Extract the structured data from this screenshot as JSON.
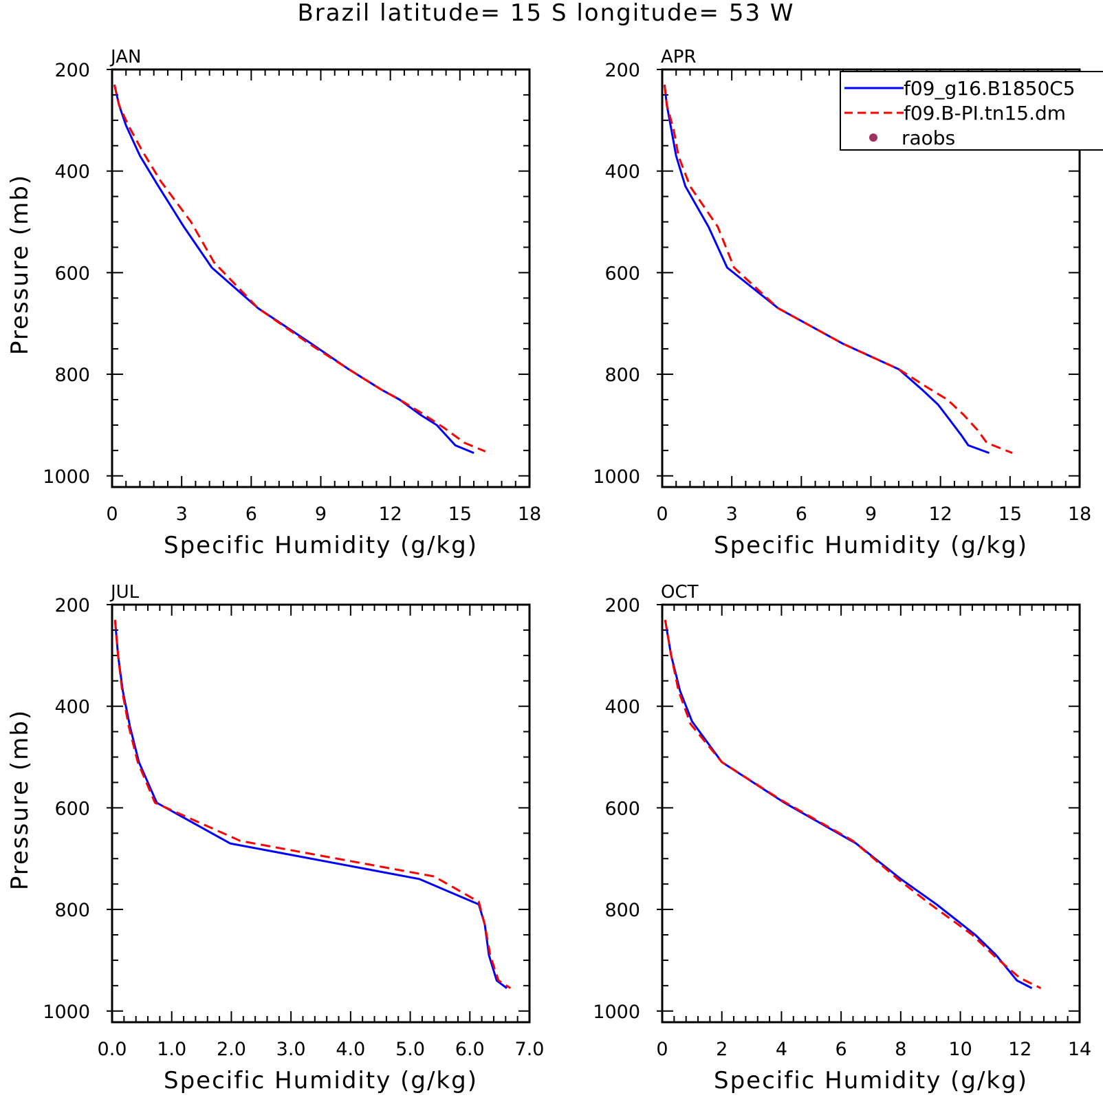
{
  "figure": {
    "title": "Brazil  latitude= 15 S longitude= 53 W"
  },
  "colors": {
    "f09_g16": "#0000ff",
    "f09_B_PI": "#ff0000",
    "raobs": "#a03060"
  },
  "legend": {
    "placement": "top-right of APR panel",
    "entries": [
      {
        "label": "f09_g16.B1850C5",
        "color": "#0000ff",
        "style": "solid"
      },
      {
        "label": "f09.B-PI.tn15.dm",
        "color": "#ff0000",
        "style": "dashed"
      },
      {
        "label": "raobs",
        "color": "#a03060",
        "style": "marker"
      }
    ]
  },
  "chart_data": [
    {
      "type": "line",
      "panel": "JAN",
      "title": "JAN",
      "xlabel": "Specific Humidity (g/kg)",
      "ylabel": "Pressure (mb)",
      "xlim": [
        0,
        18
      ],
      "ylim": [
        1000,
        200
      ],
      "y_inverted": true,
      "xticks": [
        "0",
        "3",
        "6",
        "9",
        "12",
        "15",
        "18"
      ],
      "yticks": [
        "200",
        "400",
        "600",
        "800",
        "1000"
      ],
      "series": [
        {
          "name": "f09_g16.B1850C5",
          "points": [
            [
              0.1,
              230
            ],
            [
              0.3,
              270
            ],
            [
              0.6,
              310
            ],
            [
              1.2,
              370
            ],
            [
              2.0,
              430
            ],
            [
              3.1,
              510
            ],
            [
              4.3,
              590
            ],
            [
              6.3,
              670
            ],
            [
              8.6,
              740
            ],
            [
              10.2,
              790
            ],
            [
              11.6,
              830
            ],
            [
              12.4,
              850
            ],
            [
              13.3,
              880
            ],
            [
              14.0,
              900
            ],
            [
              14.8,
              940
            ],
            [
              15.6,
              955
            ]
          ]
        },
        {
          "name": "f09.B-PI.tn15.dm",
          "points": [
            [
              0.1,
              230
            ],
            [
              0.3,
              270
            ],
            [
              0.7,
              310
            ],
            [
              1.3,
              360
            ],
            [
              2.1,
              420
            ],
            [
              3.4,
              500
            ],
            [
              4.4,
              580
            ],
            [
              6.3,
              670
            ],
            [
              8.5,
              740
            ],
            [
              10.2,
              790
            ],
            [
              11.6,
              830
            ],
            [
              12.4,
              850
            ],
            [
              13.3,
              875
            ],
            [
              14.3,
              905
            ],
            [
              15.2,
              935
            ],
            [
              16.1,
              952
            ]
          ]
        }
      ]
    },
    {
      "type": "line",
      "panel": "APR",
      "title": "APR",
      "xlabel": "Specific Humidity (g/kg)",
      "ylabel": "",
      "xlim": [
        0,
        18
      ],
      "ylim": [
        1000,
        200
      ],
      "y_inverted": true,
      "xticks": [
        "0",
        "3",
        "6",
        "9",
        "12",
        "15",
        "18"
      ],
      "yticks": [
        "200",
        "400",
        "600",
        "800",
        "1000"
      ],
      "series": [
        {
          "name": "f09_g16.B1850C5",
          "points": [
            [
              0.1,
              230
            ],
            [
              0.2,
              270
            ],
            [
              0.4,
              320
            ],
            [
              0.6,
              370
            ],
            [
              1.0,
              430
            ],
            [
              2.0,
              510
            ],
            [
              2.8,
              590
            ],
            [
              5.0,
              670
            ],
            [
              7.8,
              740
            ],
            [
              10.2,
              790
            ],
            [
              11.2,
              830
            ],
            [
              11.9,
              860
            ],
            [
              12.4,
              890
            ],
            [
              12.9,
              920
            ],
            [
              13.2,
              940
            ],
            [
              14.1,
              955
            ]
          ]
        },
        {
          "name": "f09.B-PI.tn15.dm",
          "points": [
            [
              0.1,
              230
            ],
            [
              0.2,
              270
            ],
            [
              0.5,
              320
            ],
            [
              0.7,
              370
            ],
            [
              1.2,
              430
            ],
            [
              2.4,
              510
            ],
            [
              3.1,
              590
            ],
            [
              5.0,
              670
            ],
            [
              7.8,
              740
            ],
            [
              10.2,
              790
            ],
            [
              11.4,
              825
            ],
            [
              12.3,
              850
            ],
            [
              13.0,
              880
            ],
            [
              13.6,
              910
            ],
            [
              14.0,
              935
            ],
            [
              15.1,
              955
            ]
          ]
        }
      ]
    },
    {
      "type": "line",
      "panel": "JUL",
      "title": "JUL",
      "xlabel": "Specific Humidity (g/kg)",
      "ylabel": "Pressure (mb)",
      "xlim": [
        0,
        7
      ],
      "ylim": [
        1000,
        200
      ],
      "y_inverted": true,
      "xticks": [
        "0.0",
        "1.0",
        "2.0",
        "3.0",
        "4.0",
        "5.0",
        "6.0",
        "7.0"
      ],
      "yticks": [
        "200",
        "400",
        "600",
        "800",
        "1000"
      ],
      "series": [
        {
          "name": "f09_g16.B1850C5",
          "points": [
            [
              0.05,
              230
            ],
            [
              0.1,
              300
            ],
            [
              0.18,
              370
            ],
            [
              0.3,
              440
            ],
            [
              0.45,
              510
            ],
            [
              0.75,
              590
            ],
            [
              1.98,
              670
            ],
            [
              5.15,
              740
            ],
            [
              6.15,
              790
            ],
            [
              6.25,
              830
            ],
            [
              6.32,
              890
            ],
            [
              6.45,
              940
            ],
            [
              6.62,
              955
            ]
          ]
        },
        {
          "name": "f09.B-PI.tn15.dm",
          "points": [
            [
              0.05,
              230
            ],
            [
              0.1,
              300
            ],
            [
              0.17,
              370
            ],
            [
              0.28,
              440
            ],
            [
              0.43,
              510
            ],
            [
              0.72,
              590
            ],
            [
              2.15,
              665
            ],
            [
              5.4,
              735
            ],
            [
              6.15,
              785
            ],
            [
              6.25,
              830
            ],
            [
              6.34,
              890
            ],
            [
              6.48,
              940
            ],
            [
              6.68,
              955
            ]
          ]
        }
      ]
    },
    {
      "type": "line",
      "panel": "OCT",
      "title": "OCT",
      "xlabel": "Specific Humidity (g/kg)",
      "ylabel": "",
      "xlim": [
        0,
        14
      ],
      "ylim": [
        1000,
        200
      ],
      "y_inverted": true,
      "xticks": [
        "0",
        "2",
        "4",
        "6",
        "8",
        "10",
        "12",
        "14"
      ],
      "yticks": [
        "200",
        "400",
        "600",
        "800",
        "1000"
      ],
      "series": [
        {
          "name": "f09_g16.B1850C5",
          "points": [
            [
              0.1,
              230
            ],
            [
              0.3,
              300
            ],
            [
              0.6,
              370
            ],
            [
              1.0,
              430
            ],
            [
              2.0,
              510
            ],
            [
              4.1,
              590
            ],
            [
              6.5,
              670
            ],
            [
              8.0,
              740
            ],
            [
              9.2,
              790
            ],
            [
              10.5,
              850
            ],
            [
              11.2,
              890
            ],
            [
              11.9,
              940
            ],
            [
              12.4,
              955
            ]
          ]
        },
        {
          "name": "f09.B-PI.tn15.dm",
          "points": [
            [
              0.1,
              230
            ],
            [
              0.3,
              300
            ],
            [
              0.55,
              370
            ],
            [
              0.95,
              435
            ],
            [
              2.0,
              510
            ],
            [
              4.0,
              585
            ],
            [
              6.4,
              665
            ],
            [
              7.9,
              740
            ],
            [
              9.0,
              790
            ],
            [
              10.4,
              850
            ],
            [
              11.2,
              895
            ],
            [
              12.0,
              935
            ],
            [
              12.7,
              955
            ]
          ]
        }
      ]
    }
  ]
}
